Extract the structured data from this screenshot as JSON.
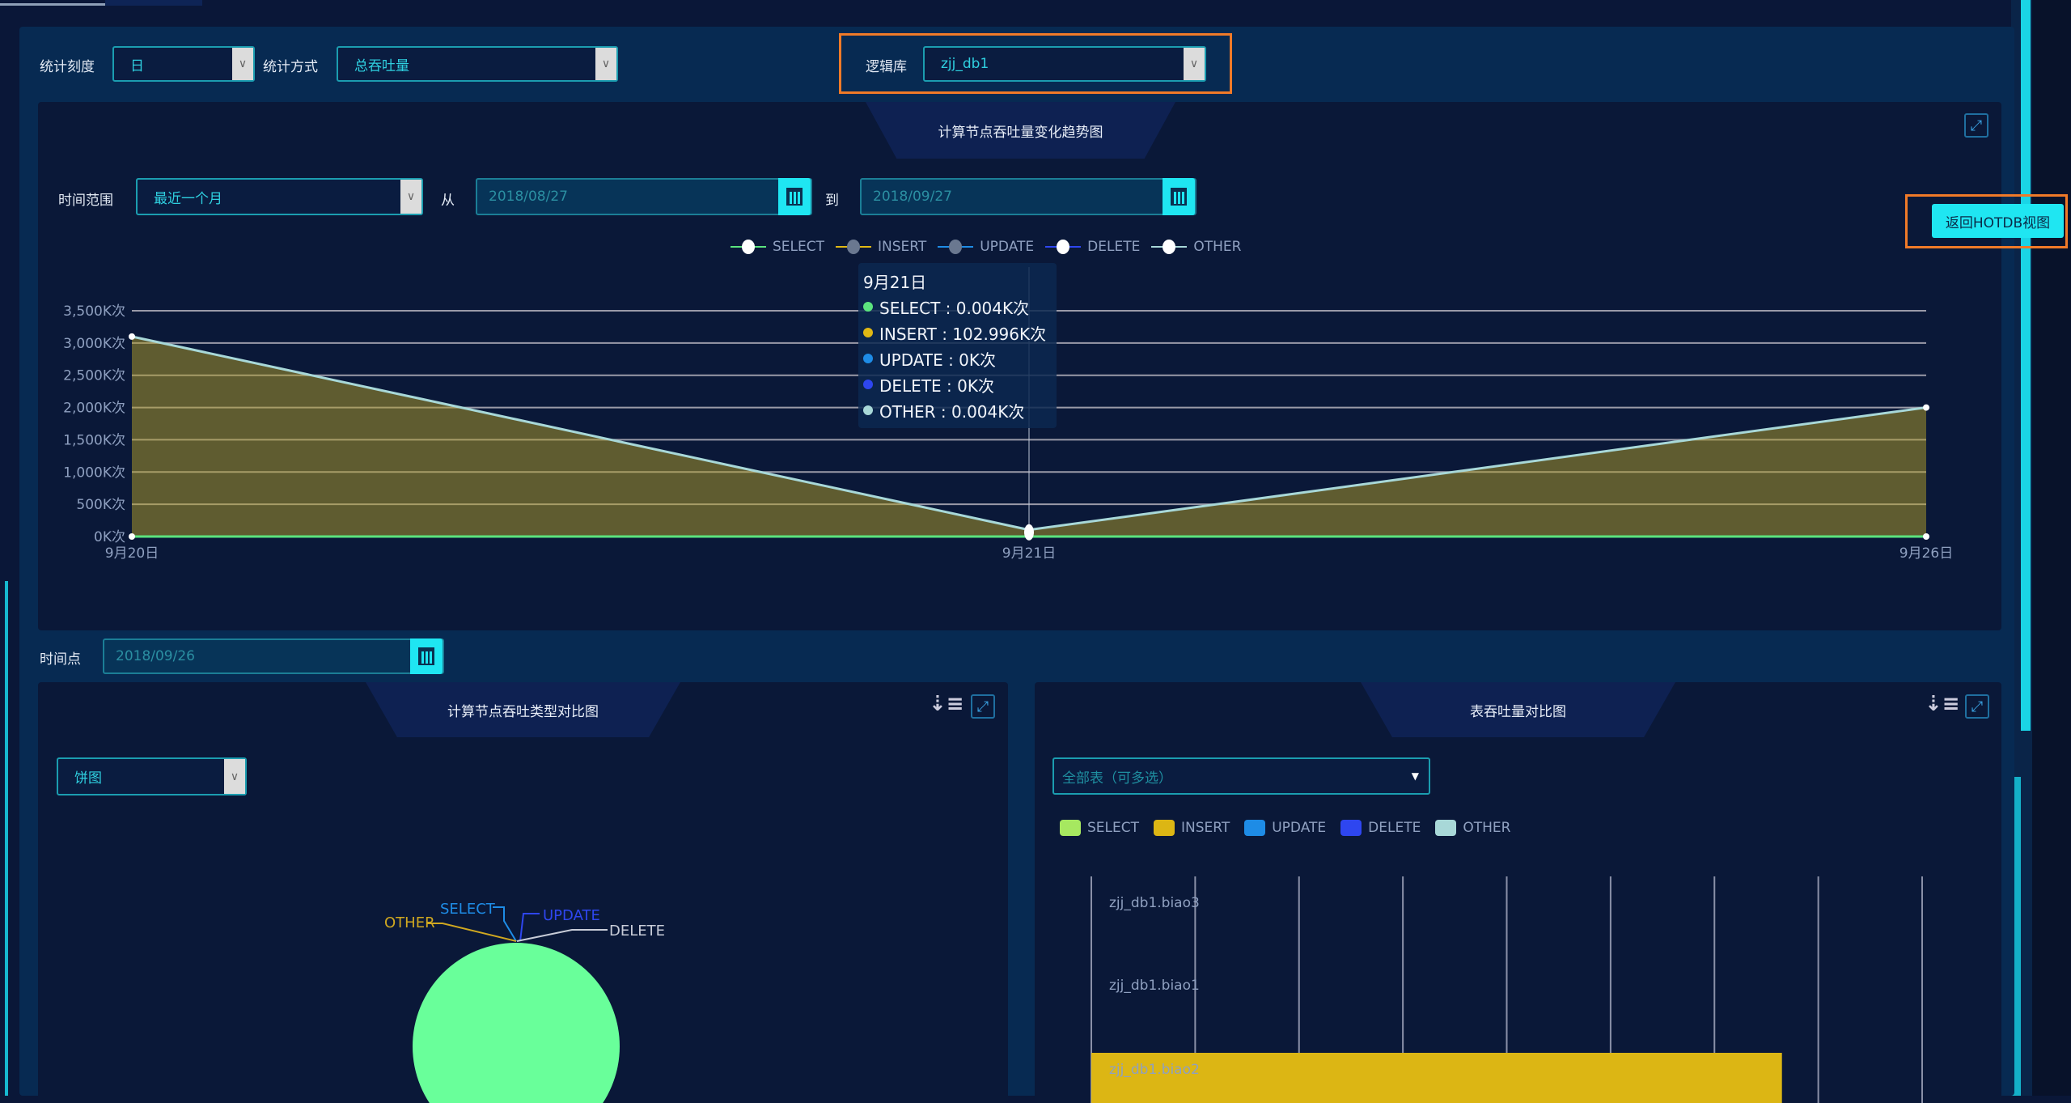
{
  "filters": {
    "scale_label": "统计刻度",
    "scale_value": "日",
    "method_label": "统计方式",
    "method_value": "总吞吐量",
    "db_label": "逻辑库",
    "db_value": "zjj_db1"
  },
  "trend": {
    "title": "计算节点吞吐量变化趋势图",
    "range_label": "时间范围",
    "range_value": "最近一个月",
    "from_label": "从",
    "from_date": "2018/08/27",
    "to_label": "到",
    "to_date": "2018/09/27",
    "return_button": "返回HOTDB视图"
  },
  "colors": {
    "SELECT": "#5be37e",
    "INSERT": "#e0b814",
    "UPDATE": "#1e8ce6",
    "DELETE": "#2e46f0",
    "OTHER": "#a8d8d8",
    "accent": "#1fe6f2",
    "highlight": "#f07a28"
  },
  "chart_data": [
    {
      "type": "area",
      "legend": [
        "SELECT",
        "INSERT",
        "UPDATE",
        "DELETE",
        "OTHER"
      ],
      "legend_placement": "top",
      "categories": [
        "9月20日",
        "9月21日",
        "9月26日"
      ],
      "yticks": [
        "0K次",
        "500K次",
        "1,000K次",
        "1,500K次",
        "2,000K次",
        "2,500K次",
        "3,000K次",
        "3,500K次"
      ],
      "ylim": [
        0,
        3500
      ],
      "grid": true,
      "series": [
        {
          "name": "SELECT",
          "values": [
            0,
            0.004,
            0
          ]
        },
        {
          "name": "INSERT",
          "values": [
            3100,
            102.996,
            2000
          ]
        },
        {
          "name": "UPDATE",
          "values": [
            0,
            0,
            0
          ]
        },
        {
          "name": "DELETE",
          "values": [
            0,
            0,
            0
          ]
        },
        {
          "name": "OTHER",
          "values": [
            0,
            0.004,
            0
          ]
        }
      ],
      "tooltip": {
        "title": "9月21日",
        "rows": [
          "SELECT : 0.004K次",
          "INSERT : 102.996K次",
          "UPDATE : 0K次",
          "DELETE : 0K次",
          "OTHER : 0.004K次"
        ]
      }
    },
    {
      "type": "pie",
      "title": "计算节点吞吐类型对比图",
      "labels": [
        "SELECT",
        "UPDATE",
        "OTHER",
        "DELETE"
      ],
      "dominant": "SELECT"
    },
    {
      "type": "bar",
      "title": "表吞吐量对比图",
      "legend": [
        "SELECT",
        "INSERT",
        "UPDATE",
        "DELETE",
        "OTHER"
      ],
      "categories": [
        "zjj_db1.biao3",
        "zjj_db1.biao1",
        "zjj_db1.biao2"
      ],
      "series": [
        {
          "name": "INSERT",
          "values": [
            0,
            0,
            6.65
          ]
        }
      ],
      "xlim": [
        0,
        8
      ],
      "grid": true
    }
  ],
  "timepoint": {
    "label": "时间点",
    "date": "2018/09/26"
  },
  "pie_panel": {
    "chart_type": "饼图"
  },
  "bar_panel": {
    "table_select": "全部表（可多选）"
  }
}
